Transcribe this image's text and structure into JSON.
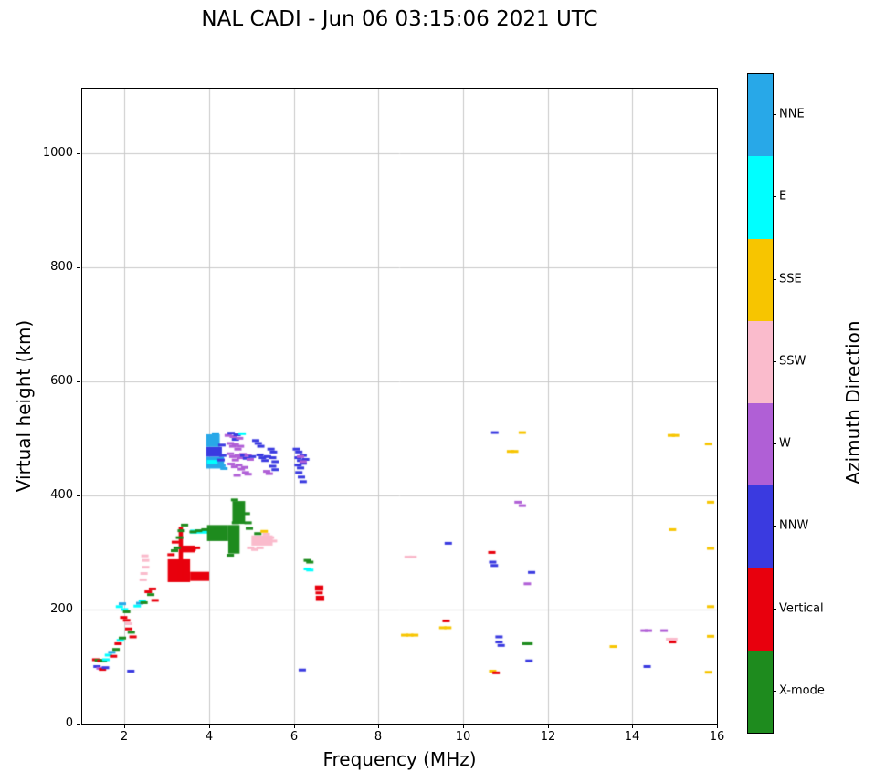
{
  "chart_data": {
    "type": "scatter",
    "title": "NAL CADI - Jun 06 03:15:06 2021 UTC",
    "xlabel": "Frequency (MHz)",
    "ylabel": "Virtual height (km)",
    "colorbar_label": "Azimuth Direction",
    "xlim": [
      1,
      16
    ],
    "ylim": [
      0,
      1113
    ],
    "xticks": [
      2,
      4,
      6,
      8,
      10,
      12,
      14,
      16
    ],
    "yticks": [
      0,
      200,
      400,
      600,
      800,
      1000
    ],
    "grid": true,
    "legend_position": "right-colorbar",
    "directions": [
      {
        "label": "NNE",
        "color": "#28A8E8"
      },
      {
        "label": "E",
        "color": "#00FFFF"
      },
      {
        "label": "SSE",
        "color": "#F7C500"
      },
      {
        "label": "SSW",
        "color": "#FABBCC"
      },
      {
        "label": "W",
        "color": "#B05FD6"
      },
      {
        "label": "NNW",
        "color": "#3A3AE0"
      },
      {
        "label": "Vertical",
        "color": "#E8000D"
      },
      {
        "label": "X-mode",
        "color": "#1E8B1E"
      }
    ],
    "blocks": [
      [
        3.02,
        3.55,
        248,
        288,
        "Vertical"
      ],
      [
        3.55,
        4.0,
        250,
        266,
        "Vertical"
      ],
      [
        3.28,
        3.38,
        250,
        345,
        "Vertical"
      ],
      [
        3.3,
        3.66,
        300,
        312,
        "Vertical"
      ],
      [
        3.55,
        4.3,
        333,
        340,
        "E"
      ],
      [
        3.95,
        4.45,
        320,
        348,
        "X-mode"
      ],
      [
        4.45,
        4.72,
        298,
        348,
        "X-mode"
      ],
      [
        4.55,
        4.85,
        350,
        390,
        "X-mode"
      ],
      [
        3.93,
        4.35,
        447,
        468,
        "NNE"
      ],
      [
        3.93,
        4.3,
        468,
        485,
        "NNW"
      ],
      [
        3.93,
        4.25,
        485,
        507,
        "NNE"
      ],
      [
        3.95,
        4.2,
        455,
        462,
        "E"
      ],
      [
        5.0,
        5.5,
        312,
        330,
        "SSW"
      ],
      [
        6.5,
        6.7,
        233,
        242,
        "Vertical"
      ],
      [
        6.52,
        6.72,
        215,
        224,
        "Vertical"
      ]
    ],
    "points": [
      [
        1.32,
        112,
        "Vertical"
      ],
      [
        1.38,
        111,
        "X-mode"
      ],
      [
        1.44,
        110,
        "Vertical"
      ],
      [
        1.5,
        110,
        "X-mode"
      ],
      [
        1.56,
        112,
        "E"
      ],
      [
        1.35,
        100,
        "NNW"
      ],
      [
        1.42,
        97,
        "W"
      ],
      [
        1.48,
        95,
        "Vertical"
      ],
      [
        1.55,
        98,
        "NNW"
      ],
      [
        1.62,
        120,
        "E"
      ],
      [
        1.7,
        125,
        "NNE"
      ],
      [
        1.74,
        118,
        "Vertical"
      ],
      [
        1.8,
        130,
        "X-mode"
      ],
      [
        1.85,
        140,
        "Vertical"
      ],
      [
        1.9,
        146,
        "E"
      ],
      [
        1.95,
        150,
        "X-mode"
      ],
      [
        1.88,
        205,
        "E"
      ],
      [
        1.95,
        210,
        "NNE"
      ],
      [
        2.0,
        200,
        "E"
      ],
      [
        2.05,
        196,
        "X-mode"
      ],
      [
        1.98,
        186,
        "Vertical"
      ],
      [
        2.05,
        181,
        "Vertical"
      ],
      [
        2.1,
        175,
        "SSW"
      ],
      [
        2.1,
        166,
        "Vertical"
      ],
      [
        2.16,
        160,
        "X-mode"
      ],
      [
        2.2,
        152,
        "Vertical"
      ],
      [
        2.15,
        92,
        "NNW"
      ],
      [
        2.3,
        206,
        "E"
      ],
      [
        2.36,
        211,
        "NNE"
      ],
      [
        2.42,
        215,
        "E"
      ],
      [
        2.46,
        212,
        "X-mode"
      ],
      [
        2.44,
        252,
        "SSW"
      ],
      [
        2.46,
        263,
        "SSW"
      ],
      [
        2.5,
        274,
        "SSW"
      ],
      [
        2.5,
        286,
        "SSW"
      ],
      [
        2.48,
        294,
        "SSW"
      ],
      [
        2.56,
        231,
        "Vertical"
      ],
      [
        2.62,
        226,
        "X-mode"
      ],
      [
        2.66,
        236,
        "Vertical"
      ],
      [
        2.72,
        216,
        "Vertical"
      ],
      [
        3.1,
        296,
        "Vertical"
      ],
      [
        3.18,
        303,
        "X-mode"
      ],
      [
        3.24,
        308,
        "X-mode"
      ],
      [
        3.2,
        318,
        "Vertical"
      ],
      [
        3.3,
        326,
        "X-mode"
      ],
      [
        3.34,
        338,
        "X-mode"
      ],
      [
        3.42,
        348,
        "X-mode"
      ],
      [
        3.6,
        305,
        "Vertical"
      ],
      [
        3.7,
        308,
        "Vertical"
      ],
      [
        3.62,
        336,
        "X-mode"
      ],
      [
        3.75,
        338,
        "X-mode"
      ],
      [
        3.9,
        340,
        "X-mode"
      ],
      [
        4.05,
        342,
        "X-mode"
      ],
      [
        4.2,
        344,
        "X-mode"
      ],
      [
        4.6,
        392,
        "X-mode"
      ],
      [
        4.68,
        385,
        "X-mode"
      ],
      [
        4.62,
        352,
        "X-mode"
      ],
      [
        4.88,
        368,
        "X-mode"
      ],
      [
        4.92,
        352,
        "X-mode"
      ],
      [
        4.95,
        342,
        "X-mode"
      ],
      [
        4.5,
        295,
        "X-mode"
      ],
      [
        4.98,
        308,
        "SSW"
      ],
      [
        5.08,
        305,
        "SSW"
      ],
      [
        5.2,
        308,
        "SSW"
      ],
      [
        5.35,
        332,
        "SSW"
      ],
      [
        5.45,
        326,
        "SSW"
      ],
      [
        5.52,
        320,
        "SSW"
      ],
      [
        5.15,
        333,
        "X-mode"
      ],
      [
        5.3,
        337,
        "SSE"
      ],
      [
        4.28,
        462,
        "NNW"
      ],
      [
        4.32,
        470,
        "NNW"
      ],
      [
        4.3,
        452,
        "NNE"
      ],
      [
        4.35,
        447,
        "NNE"
      ],
      [
        4.15,
        508,
        "NNE"
      ],
      [
        4.3,
        488,
        "NNW"
      ],
      [
        4.45,
        505,
        "W"
      ],
      [
        4.52,
        509,
        "NNW"
      ],
      [
        4.57,
        503,
        "W"
      ],
      [
        4.62,
        498,
        "NNW"
      ],
      [
        4.66,
        506,
        "NNW"
      ],
      [
        4.72,
        500,
        "W"
      ],
      [
        4.5,
        491,
        "W"
      ],
      [
        4.56,
        486,
        "W"
      ],
      [
        4.62,
        489,
        "W"
      ],
      [
        4.68,
        481,
        "W"
      ],
      [
        4.74,
        486,
        "W"
      ],
      [
        4.5,
        473,
        "W"
      ],
      [
        4.56,
        468,
        "W"
      ],
      [
        4.62,
        462,
        "W"
      ],
      [
        4.68,
        470,
        "W"
      ],
      [
        4.74,
        466,
        "W"
      ],
      [
        4.8,
        472,
        "W"
      ],
      [
        4.52,
        455,
        "W"
      ],
      [
        4.6,
        450,
        "W"
      ],
      [
        4.7,
        453,
        "W"
      ],
      [
        4.76,
        446,
        "W"
      ],
      [
        4.84,
        449,
        "W"
      ],
      [
        4.82,
        470,
        "NNW"
      ],
      [
        4.88,
        465,
        "NNW"
      ],
      [
        4.92,
        470,
        "W"
      ],
      [
        4.97,
        463,
        "W"
      ],
      [
        5.02,
        468,
        "NNW"
      ],
      [
        4.86,
        440,
        "W"
      ],
      [
        4.92,
        437,
        "W"
      ],
      [
        4.78,
        508,
        "E"
      ],
      [
        4.66,
        435,
        "W"
      ],
      [
        5.1,
        496,
        "NNW"
      ],
      [
        5.16,
        491,
        "NNW"
      ],
      [
        5.22,
        486,
        "NNW"
      ],
      [
        5.2,
        471,
        "NNW"
      ],
      [
        5.26,
        466,
        "NNW"
      ],
      [
        5.32,
        461,
        "NNW"
      ],
      [
        5.38,
        468,
        "NNW"
      ],
      [
        5.46,
        481,
        "NNW"
      ],
      [
        5.52,
        476,
        "NNW"
      ],
      [
        5.5,
        466,
        "NNW"
      ],
      [
        5.56,
        459,
        "NNW"
      ],
      [
        5.5,
        451,
        "NNW"
      ],
      [
        5.56,
        445,
        "NNW"
      ],
      [
        5.36,
        442,
        "W"
      ],
      [
        5.42,
        438,
        "W"
      ],
      [
        6.06,
        481,
        "NNW"
      ],
      [
        6.12,
        476,
        "NNW"
      ],
      [
        6.1,
        466,
        "NNW"
      ],
      [
        6.16,
        461,
        "NNW"
      ],
      [
        6.1,
        453,
        "NNW"
      ],
      [
        6.16,
        448,
        "NNW"
      ],
      [
        6.22,
        456,
        "NNW"
      ],
      [
        6.22,
        470,
        "NNW"
      ],
      [
        6.28,
        463,
        "NNW"
      ],
      [
        6.12,
        440,
        "NNW"
      ],
      [
        6.18,
        432,
        "NNW"
      ],
      [
        6.22,
        424,
        "NNW"
      ],
      [
        6.16,
        468,
        "W"
      ],
      [
        6.22,
        459,
        "W"
      ],
      [
        6.2,
        94,
        "NNW"
      ],
      [
        6.32,
        286,
        "X-mode"
      ],
      [
        6.38,
        283,
        "X-mode"
      ],
      [
        6.32,
        271,
        "E"
      ],
      [
        6.38,
        269,
        "E"
      ],
      [
        6.6,
        229,
        "Vertical"
      ],
      [
        8.7,
        292,
        "SSW"
      ],
      [
        8.82,
        292,
        "SSW"
      ],
      [
        8.62,
        155,
        "SSE"
      ],
      [
        8.74,
        155,
        "SSE"
      ],
      [
        8.86,
        155,
        "SSE"
      ],
      [
        9.65,
        316,
        "NNW"
      ],
      [
        9.6,
        180,
        "Vertical"
      ],
      [
        9.52,
        168,
        "SSE"
      ],
      [
        9.64,
        168,
        "SSE"
      ],
      [
        10.68,
        300,
        "Vertical"
      ],
      [
        10.7,
        283,
        "NNW"
      ],
      [
        10.74,
        277,
        "NNW"
      ],
      [
        10.75,
        510,
        "NNW"
      ],
      [
        11.12,
        477,
        "SSE"
      ],
      [
        11.22,
        477,
        "SSE"
      ],
      [
        11.4,
        510,
        "SSE"
      ],
      [
        10.7,
        92,
        "SSE"
      ],
      [
        10.78,
        89,
        "Vertical"
      ],
      [
        10.85,
        152,
        "NNW"
      ],
      [
        10.85,
        143,
        "NNW"
      ],
      [
        10.9,
        137,
        "NNW"
      ],
      [
        11.3,
        388,
        "W"
      ],
      [
        11.4,
        382,
        "W"
      ],
      [
        11.52,
        245,
        "W"
      ],
      [
        11.62,
        265,
        "NNW"
      ],
      [
        11.48,
        140,
        "X-mode"
      ],
      [
        11.56,
        140,
        "X-mode"
      ],
      [
        11.56,
        110,
        "NNW"
      ],
      [
        13.55,
        135,
        "SSE"
      ],
      [
        14.28,
        163,
        "W"
      ],
      [
        14.38,
        163,
        "W"
      ],
      [
        14.35,
        100,
        "NNW"
      ],
      [
        14.92,
        505,
        "SSE"
      ],
      [
        15.02,
        505,
        "SSE"
      ],
      [
        14.95,
        340,
        "SSE"
      ],
      [
        14.88,
        148,
        "SSW"
      ],
      [
        14.98,
        148,
        "SSW"
      ],
      [
        14.95,
        143,
        "Vertical"
      ],
      [
        14.75,
        163,
        "W"
      ],
      [
        15.8,
        490,
        "SSE"
      ],
      [
        15.85,
        388,
        "SSE"
      ],
      [
        15.85,
        307,
        "SSE"
      ],
      [
        15.85,
        205,
        "SSE"
      ],
      [
        15.85,
        153,
        "SSE"
      ],
      [
        15.8,
        90,
        "SSE"
      ]
    ]
  }
}
